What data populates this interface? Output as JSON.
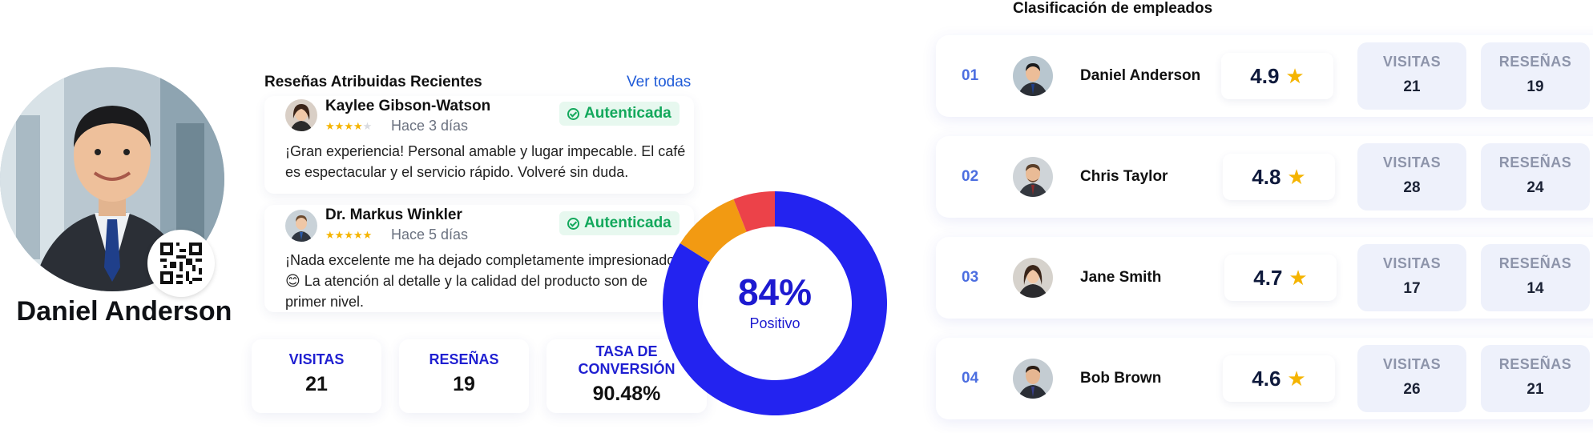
{
  "profile": {
    "name": "Daniel Anderson"
  },
  "reviews": {
    "title": "Reseñas Atribuidas Recientes",
    "view_all": "Ver todas",
    "items": [
      {
        "name": "Kaylee Gibson-Watson",
        "rating": 4,
        "time": "Hace 3 días",
        "badge": "Autenticada",
        "text": "¡Gran experiencia! Personal amable y lugar impecable. El café es espectacular y el servicio rápido. Volveré sin duda."
      },
      {
        "name": "Dr. Markus Winkler",
        "rating": 5,
        "time": "Hace 5 días",
        "badge": "Autenticada",
        "text": "¡Nada excelente me ha dejado completamente impresionado! 😊 La atención al detalle y la calidad del producto son de primer nivel."
      }
    ]
  },
  "stats": {
    "visits_label": "VISITAS",
    "visits_value": "21",
    "reviews_label": "RESEÑAS",
    "reviews_value": "19",
    "conversion_label_line1": "TASA DE",
    "conversion_label_line2": "CONVERSIÓN",
    "conversion_value": "90.48%"
  },
  "donut": {
    "percent_text": "84%",
    "label": "Positivo",
    "segments": [
      {
        "name": "positive",
        "value": 84,
        "color": "#2323f0"
      },
      {
        "name": "neutral",
        "value": 10,
        "color": "#f29a12"
      },
      {
        "name": "negative",
        "value": 6,
        "color": "#ec4249"
      }
    ]
  },
  "ranking": {
    "title": "Clasificación de empleados",
    "rows": [
      {
        "num": "01",
        "name": "Daniel Anderson",
        "rating": "4.9",
        "visits_label": "VISITAS",
        "visits": "21",
        "reviews_label": "RESEÑAS",
        "reviews": "19"
      },
      {
        "num": "02",
        "name": "Chris Taylor",
        "rating": "4.8",
        "visits_label": "VISITAS",
        "visits": "28",
        "reviews_label": "RESEÑAS",
        "reviews": "24"
      },
      {
        "num": "03",
        "name": "Jane Smith",
        "rating": "4.7",
        "visits_label": "VISITAS",
        "visits": "17",
        "reviews_label": "RESEÑAS",
        "reviews": "14"
      },
      {
        "num": "04",
        "name": "Bob Brown",
        "rating": "4.6",
        "visits_label": "VISITAS",
        "visits": "26",
        "reviews_label": "RESEÑAS",
        "reviews": "21"
      }
    ]
  },
  "colors": {
    "accent_blue": "#1f1fd1",
    "link_blue": "#1f5bd8",
    "success_green": "#13a85c",
    "star_gold": "#f5b400",
    "rank_number": "#4c6ee0"
  }
}
